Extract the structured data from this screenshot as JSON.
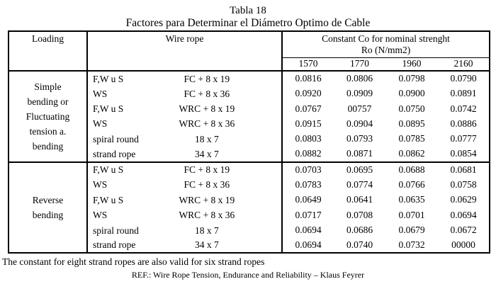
{
  "title": "Tabla 18",
  "subtitle": "Factores para Determinar el Diámetro Optimo de Cable",
  "colors": {
    "text": "#000000",
    "border": "#000000",
    "background": "#ffffff"
  },
  "table": {
    "headers": {
      "loading": "Loading",
      "wire_rope": "Wire rope",
      "constant_line1": "Constant Co for nominal strenght",
      "constant_line2": "Ro (N/mm2)",
      "strength_values": [
        "1570",
        "1770",
        "1960",
        "2160"
      ]
    },
    "groups": [
      {
        "loading_lines": [
          "Simple",
          "bending or",
          "Fluctuating",
          "tension a.",
          "bending"
        ],
        "rows": [
          {
            "rope": "F,W u S",
            "construction": "FC + 8 x 19",
            "values": [
              "0.0816",
              "0.0806",
              "0.0798",
              "0.0790"
            ]
          },
          {
            "rope": "WS",
            "construction": "FC + 8 x 36",
            "values": [
              "0.0920",
              "0.0909",
              "0.0900",
              "0.0891"
            ]
          },
          {
            "rope": "F,W u S",
            "construction": "WRC + 8 x 19",
            "values": [
              "0.0767",
              "00757",
              "0.0750",
              "0.0742"
            ]
          },
          {
            "rope": "WS",
            "construction": "WRC + 8 x 36",
            "values": [
              "0.0915",
              "0.0904",
              "0.0895",
              "0.0886"
            ]
          },
          {
            "rope": "spiral round",
            "construction": "18 x 7",
            "values": [
              "0.0803",
              "0.0793",
              "0.0785",
              "0.0777"
            ]
          },
          {
            "rope": "strand rope",
            "construction": "34 x 7",
            "values": [
              "0.0882",
              "0.0871",
              "0.0862",
              "0.0854"
            ]
          }
        ]
      },
      {
        "loading_lines": [
          "Reverse",
          "bending"
        ],
        "rows": [
          {
            "rope": "F,W u S",
            "construction": "FC + 8 x 19",
            "values": [
              "0.0703",
              "0.0695",
              "0.0688",
              "0.0681"
            ]
          },
          {
            "rope": "WS",
            "construction": "FC + 8 x 36",
            "values": [
              "0.0783",
              "0.0774",
              "0.0766",
              "0.0758"
            ]
          },
          {
            "rope": "F,W u S",
            "construction": "WRC + 8 x 19",
            "values": [
              "0.0649",
              "0.0641",
              "0.0635",
              "0.0629"
            ]
          },
          {
            "rope": "WS",
            "construction": "WRC + 8 x 36",
            "values": [
              "0.0717",
              "0.0708",
              "0.0701",
              "0.0694"
            ]
          },
          {
            "rope": "spiral round",
            "construction": "18 x 7",
            "values": [
              "0.0694",
              "0.0686",
              "0.0679",
              "0.0672"
            ]
          },
          {
            "rope": "strand rope",
            "construction": "34 x 7",
            "values": [
              "0.0694",
              "0.0740",
              "0.0732",
              "00000"
            ]
          }
        ]
      }
    ]
  },
  "footnote": "The constant for eight strand ropes are also valid for six strand ropes",
  "reference": "REF.: Wire Rope Tension, Endurance and Reliability – Klaus Feyrer"
}
